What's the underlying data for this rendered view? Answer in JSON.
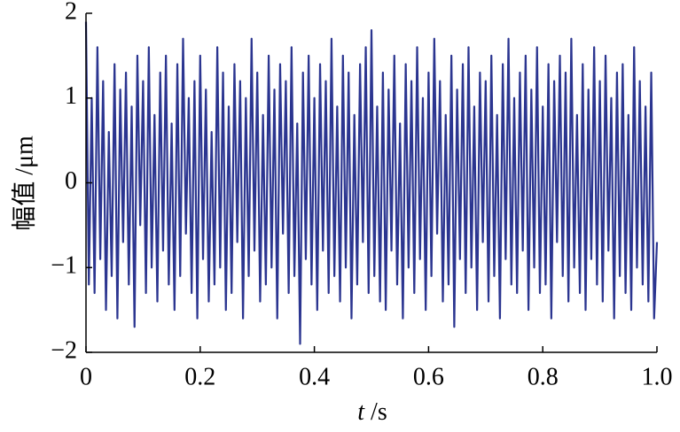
{
  "chart_data": {
    "type": "line",
    "ylabel": "幅值 /μm",
    "xlabel": {
      "symbol": "t",
      "unit": "/s"
    },
    "color": "#2b3590",
    "xlim": [
      0,
      1
    ],
    "xticks": [
      0,
      0.2,
      0.4,
      0.6,
      0.8,
      {
        "value": 1,
        "label": "1.0"
      }
    ],
    "ylim": [
      -2,
      2
    ],
    "yticks": [
      {
        "value": -2,
        "label": "−2"
      },
      {
        "value": -1,
        "label": "−1"
      },
      0,
      1,
      2
    ],
    "x": [
      0,
      0.005,
      0.01,
      0.015,
      0.02,
      0.025,
      0.03,
      0.035,
      0.04,
      0.045,
      0.05,
      0.055,
      0.06,
      0.065,
      0.07,
      0.075,
      0.08,
      0.085,
      0.09,
      0.095,
      0.1,
      0.105,
      0.11,
      0.115,
      0.12,
      0.125,
      0.13,
      0.135,
      0.14,
      0.145,
      0.15,
      0.155,
      0.16,
      0.165,
      0.17,
      0.175,
      0.18,
      0.185,
      0.19,
      0.195,
      0.2,
      0.205,
      0.21,
      0.215,
      0.22,
      0.225,
      0.23,
      0.235,
      0.24,
      0.245,
      0.25,
      0.255,
      0.26,
      0.265,
      0.27,
      0.275,
      0.28,
      0.285,
      0.29,
      0.295,
      0.3,
      0.305,
      0.31,
      0.315,
      0.32,
      0.325,
      0.33,
      0.335,
      0.34,
      0.345,
      0.35,
      0.355,
      0.36,
      0.365,
      0.37,
      0.375,
      0.38,
      0.385,
      0.39,
      0.395,
      0.4,
      0.405,
      0.41,
      0.415,
      0.42,
      0.425,
      0.43,
      0.435,
      0.44,
      0.445,
      0.45,
      0.455,
      0.46,
      0.465,
      0.47,
      0.475,
      0.48,
      0.485,
      0.49,
      0.495,
      0.5,
      0.505,
      0.51,
      0.515,
      0.52,
      0.525,
      0.53,
      0.535,
      0.54,
      0.545,
      0.55,
      0.555,
      0.56,
      0.565,
      0.57,
      0.575,
      0.58,
      0.585,
      0.59,
      0.595,
      0.6,
      0.605,
      0.61,
      0.615,
      0.62,
      0.625,
      0.63,
      0.635,
      0.64,
      0.645,
      0.65,
      0.655,
      0.66,
      0.665,
      0.67,
      0.675,
      0.68,
      0.685,
      0.69,
      0.695,
      0.7,
      0.705,
      0.71,
      0.715,
      0.72,
      0.725,
      0.73,
      0.735,
      0.74,
      0.745,
      0.75,
      0.755,
      0.76,
      0.765,
      0.77,
      0.775,
      0.78,
      0.785,
      0.79,
      0.795,
      0.8,
      0.805,
      0.81,
      0.815,
      0.82,
      0.825,
      0.83,
      0.835,
      0.84,
      0.845,
      0.85,
      0.855,
      0.86,
      0.865,
      0.87,
      0.875,
      0.88,
      0.885,
      0.89,
      0.895,
      0.9,
      0.905,
      0.91,
      0.915,
      0.92,
      0.925,
      0.93,
      0.935,
      0.94,
      0.945,
      0.95,
      0.955,
      0.96,
      0.965,
      0.97,
      0.975,
      0.98,
      0.985,
      0.99,
      0.995,
      1
    ],
    "values": [
      1.9,
      -1.2,
      1.0,
      -1.3,
      1.6,
      -0.9,
      1.2,
      -1.5,
      0.6,
      -1.1,
      1.4,
      -1.6,
      1.1,
      -0.7,
      1.3,
      -1.2,
      0.9,
      -1.7,
      1.5,
      -0.5,
      1.2,
      -1.3,
      1.6,
      -1.0,
      0.8,
      -1.4,
      1.3,
      -0.8,
      1.5,
      -1.2,
      0.7,
      -1.5,
      1.4,
      -1.1,
      1.7,
      -0.6,
      1.0,
      -1.3,
      1.2,
      -1.6,
      1.5,
      -0.9,
      1.1,
      -1.4,
      0.6,
      -1.2,
      1.6,
      -1.0,
      1.3,
      -1.5,
      0.9,
      -1.3,
      1.4,
      -0.7,
      1.2,
      -1.6,
      1.0,
      -1.1,
      1.7,
      -0.8,
      1.3,
      -1.4,
      0.8,
      -1.2,
      1.5,
      -1.0,
      1.1,
      -1.6,
      1.4,
      -0.6,
      1.2,
      -1.3,
      1.6,
      -1.1,
      0.7,
      -1.9,
      1.3,
      -0.9,
      1.5,
      -1.2,
      1.0,
      -1.5,
      1.4,
      -0.8,
      1.2,
      -1.3,
      1.7,
      -1.1,
      0.9,
      -1.4,
      1.5,
      -1.0,
      1.3,
      -1.6,
      0.8,
      -1.2,
      1.4,
      -0.7,
      1.6,
      -1.3,
      1.8,
      -1.1,
      0.9,
      -1.4,
      1.3,
      -1.5,
      1.1,
      -0.8,
      1.5,
      -1.2,
      0.7,
      -1.6,
      1.4,
      -1.0,
      1.2,
      -1.3,
      1.6,
      -0.9,
      1.0,
      -1.5,
      1.3,
      -1.1,
      1.7,
      -0.6,
      1.2,
      -1.4,
      0.8,
      -1.2,
      1.5,
      -1.7,
      1.1,
      -0.9,
      1.4,
      -1.3,
      1.6,
      -1.0,
      0.9,
      -1.5,
      1.3,
      -0.7,
      1.2,
      -1.4,
      1.5,
      -1.1,
      0.8,
      -1.6,
      1.4,
      -0.9,
      1.7,
      -1.2,
      1.0,
      -1.3,
      1.3,
      -0.8,
      1.5,
      -1.5,
      1.1,
      -1.0,
      1.6,
      -1.3,
      0.9,
      -1.2,
      1.4,
      -1.6,
      1.2,
      -0.7,
      1.5,
      -1.1,
      1.3,
      -1.4,
      1.7,
      -1.0,
      0.8,
      -1.3,
      1.4,
      -1.5,
      1.1,
      -0.9,
      1.6,
      -1.2,
      1.2,
      -1.4,
      1.5,
      -0.8,
      1.0,
      -1.6,
      1.3,
      -1.1,
      1.4,
      -1.3,
      0.8,
      -1.5,
      1.6,
      -1.0,
      1.2,
      -1.2,
      0.9,
      -1.4,
      1.3,
      -1.6,
      -0.7
    ]
  }
}
